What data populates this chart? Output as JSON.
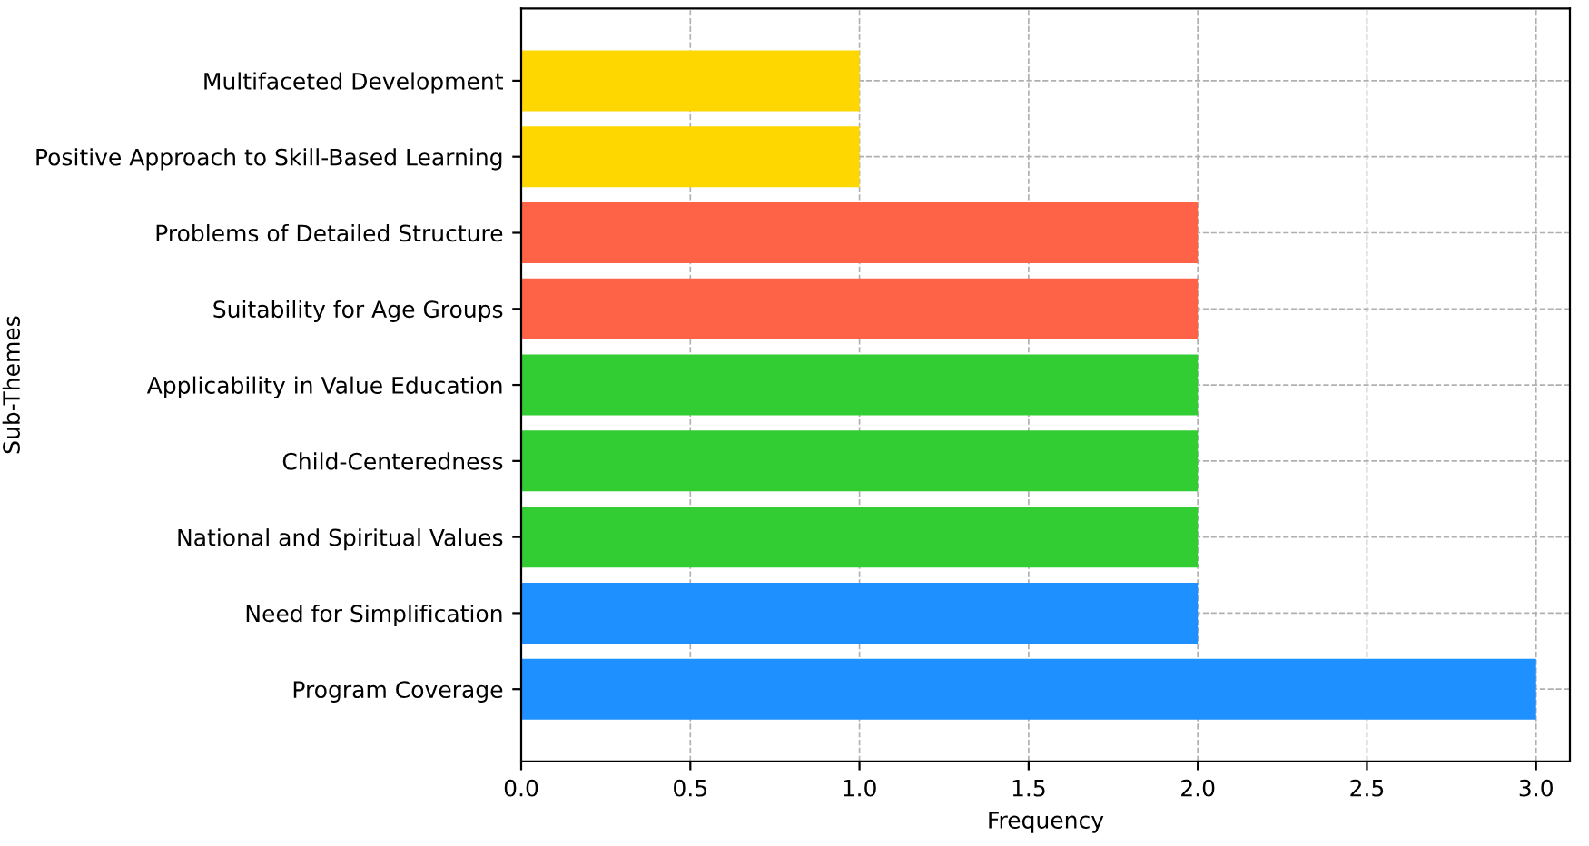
{
  "chart_data": {
    "type": "bar",
    "orientation": "horizontal",
    "xlabel": "Frequency",
    "ylabel": "Sub-Themes",
    "categories": [
      "Multifaceted Development",
      "Positive Approach to Skill-Based Learning",
      "Problems of Detailed Structure",
      "Suitability for Age Groups",
      "Applicability in Value Education",
      "Child-Centeredness",
      "National and Spiritual Values",
      "Need for Simplification",
      "Program Coverage"
    ],
    "values": [
      1,
      1,
      2,
      2,
      2,
      2,
      2,
      2,
      3
    ],
    "colors": [
      "#ffd700",
      "#ffd700",
      "#ff6347",
      "#ff6347",
      "#32cd32",
      "#32cd32",
      "#32cd32",
      "#1e90ff",
      "#1e90ff"
    ],
    "xlim": [
      0,
      3.1
    ],
    "xticks": [
      {
        "value": 0,
        "label": "0.0"
      },
      {
        "value": 0.5,
        "label": "0.5"
      },
      {
        "value": 1,
        "label": "1.0"
      },
      {
        "value": 1.5,
        "label": "1.5"
      },
      {
        "value": 2,
        "label": "2.0"
      },
      {
        "value": 2.5,
        "label": "2.5"
      },
      {
        "value": 3,
        "label": "3.0"
      }
    ],
    "grid": true,
    "line_style": "dashed"
  }
}
